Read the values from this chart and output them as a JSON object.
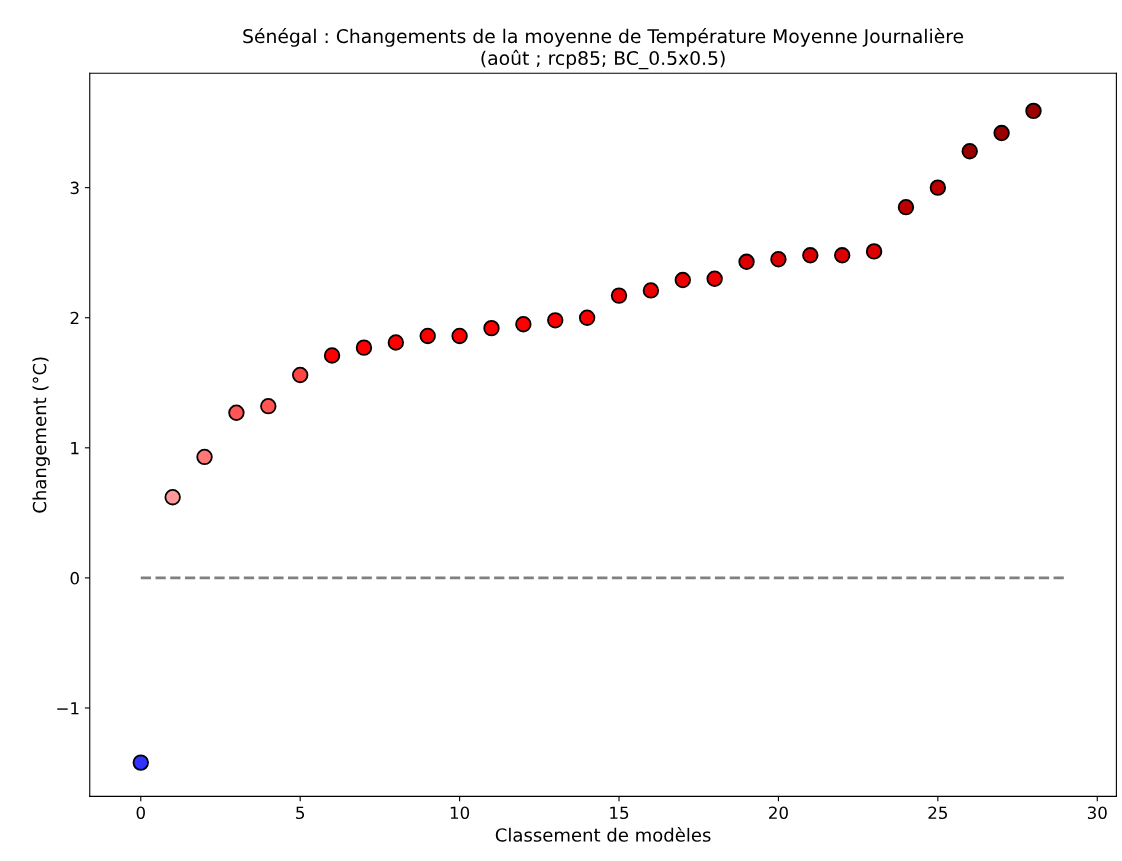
{
  "chart_data": {
    "type": "scatter",
    "title": "Sénégal : Changements de la moyenne de Température Moyenne Journalière\n(août ; rcp85; BC_0.5x0.5)",
    "xlabel": "Classement de modèles",
    "ylabel": "Changement (°C)",
    "series": [
      {
        "type": "line",
        "x": [
          0,
          29
        ],
        "values": [
          0,
          0
        ],
        "color": "#808080",
        "line_style": "dashed",
        "marker": "none"
      },
      {
        "marker": "circle",
        "x": [
          0,
          1,
          2,
          3,
          4,
          5,
          6,
          7,
          8,
          9,
          10,
          11,
          12,
          13,
          14,
          15,
          16,
          17,
          18,
          19,
          20,
          21,
          22,
          23,
          24,
          25,
          26,
          27,
          28
        ],
        "values": [
          -1.42,
          0.62,
          0.93,
          1.27,
          1.32,
          1.56,
          1.71,
          1.77,
          1.81,
          1.86,
          1.86,
          1.92,
          1.95,
          1.98,
          2.0,
          2.17,
          2.21,
          2.29,
          2.3,
          2.43,
          2.45,
          2.48,
          2.48,
          2.51,
          2.85,
          3.0,
          3.28,
          3.42,
          3.59
        ],
        "colors": [
          "#3333ff",
          "#ff9999",
          "#ff7777",
          "#ff5555",
          "#ff5555",
          "#ff4444",
          "#ff0000",
          "#ff0000",
          "#ff0000",
          "#ff0000",
          "#ff0000",
          "#ff0000",
          "#ff0000",
          "#ff0000",
          "#ff0000",
          "#ee0000",
          "#ee0000",
          "#ee0000",
          "#ee0000",
          "#dd0000",
          "#dd0000",
          "#dd0000",
          "#dd0000",
          "#dd0000",
          "#bb0000",
          "#bb0000",
          "#990000",
          "#990000",
          "#990000"
        ]
      }
    ],
    "xlim": [
      -1.6,
      30.6
    ],
    "xticks": [
      0,
      5,
      10,
      15,
      20,
      25,
      30
    ],
    "ylim": [
      -1.68,
      3.88
    ],
    "yticks": [
      {
        "value": -1,
        "label": "−1"
      },
      0,
      1,
      2,
      3
    ],
    "grid": false,
    "legend": false
  }
}
